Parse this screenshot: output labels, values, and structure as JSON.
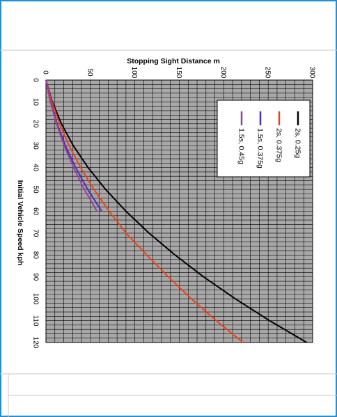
{
  "chart_data": {
    "type": "line",
    "xlabel": "Initial Vehicle Speed kph",
    "ylabel": "Stopping Sight Distance m",
    "x_ticks": [
      "0",
      "10",
      "20",
      "30",
      "40",
      "50",
      "60",
      "70",
      "80",
      "90",
      "100",
      "110",
      "120"
    ],
    "y_ticks": [
      "0",
      "50",
      "100",
      "150",
      "200",
      "250",
      "300"
    ],
    "xlim": [
      0,
      120
    ],
    "ylim": [
      0,
      300
    ],
    "grid": true,
    "orientation": "rotated 90° clockwise",
    "legend_position": "top-right",
    "series": [
      {
        "name": "2s, 0.25g",
        "color": "#000000",
        "x": [
          0,
          10,
          20,
          30,
          40,
          50,
          60,
          70,
          80,
          90,
          100,
          110,
          120
        ],
        "y": [
          0,
          7.1,
          17.4,
          30.8,
          47.4,
          67.1,
          90.0,
          116.0,
          145.2,
          177.5,
          213.0,
          251.6,
          293.4
        ]
      },
      {
        "name": "2s, 0.375g",
        "color": "#e8431e",
        "x": [
          0,
          10,
          20,
          30,
          40,
          50,
          60,
          70,
          80,
          90,
          100,
          110,
          120
        ],
        "y": [
          0,
          6.6,
          15.3,
          26.1,
          39.0,
          54.0,
          71.1,
          90.2,
          113.4,
          137.8,
          163.6,
          191.5,
          221.8
        ]
      },
      {
        "name": "1.5s, 0.375g",
        "color": "#4a2fb0",
        "x": [
          0,
          10,
          20,
          30,
          40,
          50,
          60
        ],
        "y": [
          0,
          5.2,
          12.5,
          21.9,
          33.4,
          47.0,
          62.7
        ]
      },
      {
        "name": "1.5s, 0.45g",
        "color": "#9b3f9e",
        "x": [
          0,
          10,
          20,
          30,
          40,
          50,
          60
        ],
        "y": [
          0,
          5.0,
          11.8,
          20.5,
          31.0,
          43.2,
          57.4
        ]
      }
    ]
  }
}
